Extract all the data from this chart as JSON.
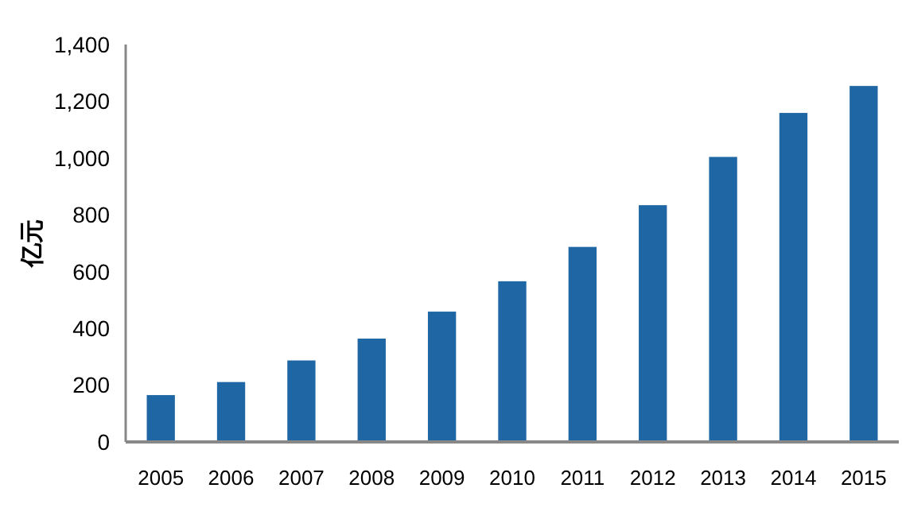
{
  "chart_data": {
    "type": "bar",
    "ylabel": "亿元",
    "categories": [
      "2005",
      "2006",
      "2007",
      "2008",
      "2009",
      "2010",
      "2011",
      "2012",
      "2013",
      "2014",
      "2015"
    ],
    "values": [
      165,
      211,
      287,
      364,
      459,
      566,
      687,
      834,
      1004,
      1159,
      1254
    ],
    "color": "#1f67a4",
    "ylim": [
      0,
      1400
    ],
    "yticks": [
      {
        "value": 0,
        "label": "0"
      },
      {
        "value": 200,
        "label": "200"
      },
      {
        "value": 400,
        "label": "400"
      },
      {
        "value": 600,
        "label": "600"
      },
      {
        "value": 800,
        "label": "800"
      },
      {
        "value": 1000,
        "label": "1,000"
      },
      {
        "value": 1200,
        "label": "1,200"
      },
      {
        "value": 1400,
        "label": "1,400"
      }
    ],
    "grid": false
  }
}
